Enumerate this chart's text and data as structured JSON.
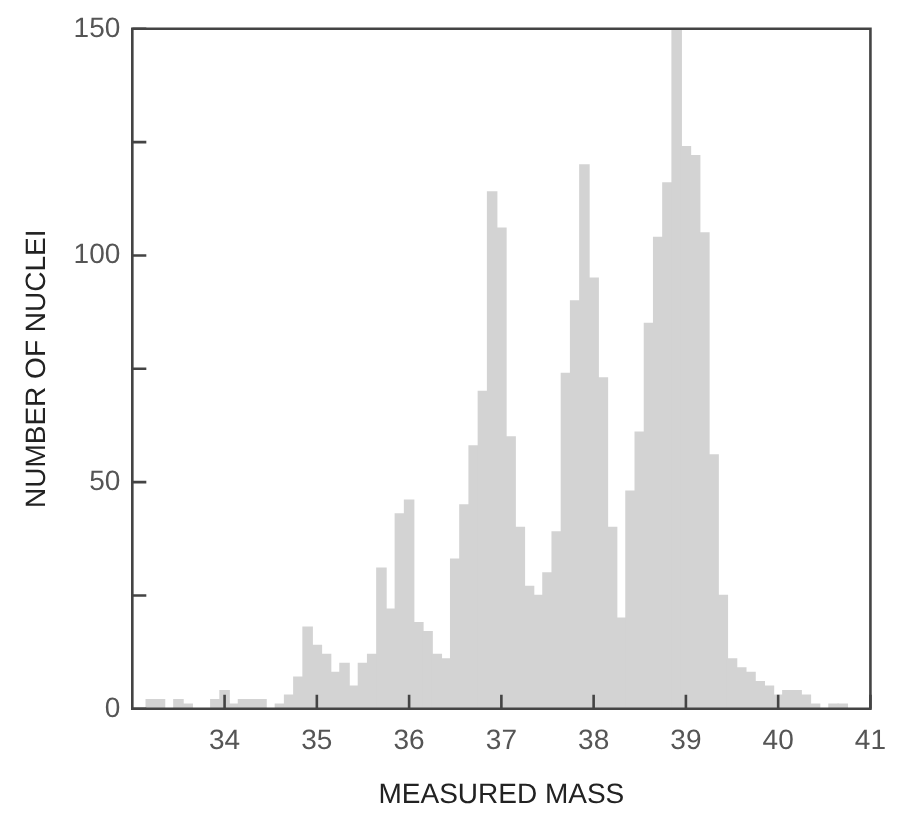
{
  "chart_data": {
    "type": "histogram",
    "xlabel": "MEASURED MASS",
    "ylabel": "NUMBER OF NUCLEI",
    "color": "#d3d3d3",
    "bins": [
      33.05,
      33.15,
      33.25,
      33.35,
      33.45,
      33.55,
      33.65,
      33.75,
      33.85,
      33.95,
      34.05,
      34.15,
      34.25,
      34.35,
      34.45,
      34.55,
      34.65,
      34.75,
      34.85,
      34.95,
      35.05,
      35.15,
      35.25,
      35.35,
      35.45,
      35.55,
      35.65,
      35.75,
      35.85,
      35.95,
      36.05,
      36.15,
      36.25,
      36.35,
      36.45,
      36.55,
      36.65,
      36.75,
      36.85,
      36.95,
      37.05,
      37.15,
      37.25,
      37.35,
      37.45,
      37.55,
      37.65,
      37.75,
      37.85,
      37.95,
      38.05,
      38.15,
      38.25,
      38.35,
      38.45,
      38.55,
      38.65,
      38.75,
      38.85,
      38.95,
      39.05,
      39.15,
      39.25,
      39.35,
      39.45,
      39.55,
      39.65,
      39.75,
      39.85,
      39.95,
      40.05,
      40.15,
      40.25,
      40.35,
      40.45,
      40.55,
      40.65,
      40.75
    ],
    "values": [
      0,
      2,
      2,
      0,
      2,
      1,
      0,
      0,
      2,
      4,
      1,
      2,
      2,
      2,
      0,
      1,
      3,
      7,
      18,
      14,
      12,
      8,
      10,
      5,
      10,
      12,
      31,
      22,
      43,
      46,
      19,
      17,
      12,
      11,
      33,
      45,
      58,
      70,
      114,
      106,
      60,
      40,
      27,
      25,
      30,
      39,
      74,
      90,
      120,
      95,
      73,
      40,
      20,
      48,
      61,
      85,
      104,
      116,
      150,
      124,
      122,
      105,
      56,
      25,
      11,
      9,
      8,
      6,
      5,
      3,
      4,
      4,
      3,
      1,
      0,
      1,
      1
    ],
    "xlim": [
      33,
      41
    ],
    "xticks": [
      34,
      35,
      36,
      37,
      38,
      39,
      40,
      41
    ],
    "ylim": [
      0,
      150
    ],
    "yticks": [
      0,
      {
        "value": 25,
        "label": null
      },
      50,
      {
        "value": 75,
        "label": null
      },
      100,
      {
        "value": 125,
        "label": null
      },
      150
    ],
    "grid": false,
    "legend": false
  }
}
